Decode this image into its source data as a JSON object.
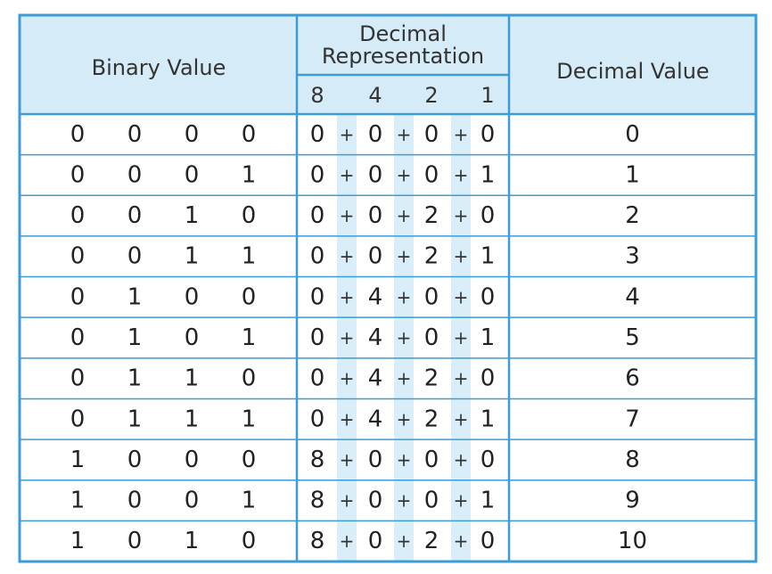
{
  "table": {
    "headers": {
      "binary": "Binary Value",
      "representation": [
        "Decimal",
        "Representation"
      ],
      "weights": [
        8,
        4,
        2,
        1
      ],
      "decimal": "Decimal Value"
    },
    "operator": "+",
    "rows": [
      {
        "bits": [
          0,
          0,
          0,
          0
        ],
        "terms": [
          0,
          0,
          0,
          0
        ],
        "value": 0
      },
      {
        "bits": [
          0,
          0,
          0,
          1
        ],
        "terms": [
          0,
          0,
          0,
          1
        ],
        "value": 1
      },
      {
        "bits": [
          0,
          0,
          1,
          0
        ],
        "terms": [
          0,
          0,
          2,
          0
        ],
        "value": 2
      },
      {
        "bits": [
          0,
          0,
          1,
          1
        ],
        "terms": [
          0,
          0,
          2,
          1
        ],
        "value": 3
      },
      {
        "bits": [
          0,
          1,
          0,
          0
        ],
        "terms": [
          0,
          4,
          0,
          0
        ],
        "value": 4
      },
      {
        "bits": [
          0,
          1,
          0,
          1
        ],
        "terms": [
          0,
          4,
          0,
          1
        ],
        "value": 5
      },
      {
        "bits": [
          0,
          1,
          1,
          0
        ],
        "terms": [
          0,
          4,
          2,
          0
        ],
        "value": 6
      },
      {
        "bits": [
          0,
          1,
          1,
          1
        ],
        "terms": [
          0,
          4,
          2,
          1
        ],
        "value": 7
      },
      {
        "bits": [
          1,
          0,
          0,
          0
        ],
        "terms": [
          8,
          0,
          0,
          0
        ],
        "value": 8
      },
      {
        "bits": [
          1,
          0,
          0,
          1
        ],
        "terms": [
          8,
          0,
          0,
          1
        ],
        "value": 9
      },
      {
        "bits": [
          1,
          0,
          1,
          0
        ],
        "terms": [
          8,
          0,
          2,
          0
        ],
        "value": 10
      }
    ]
  }
}
